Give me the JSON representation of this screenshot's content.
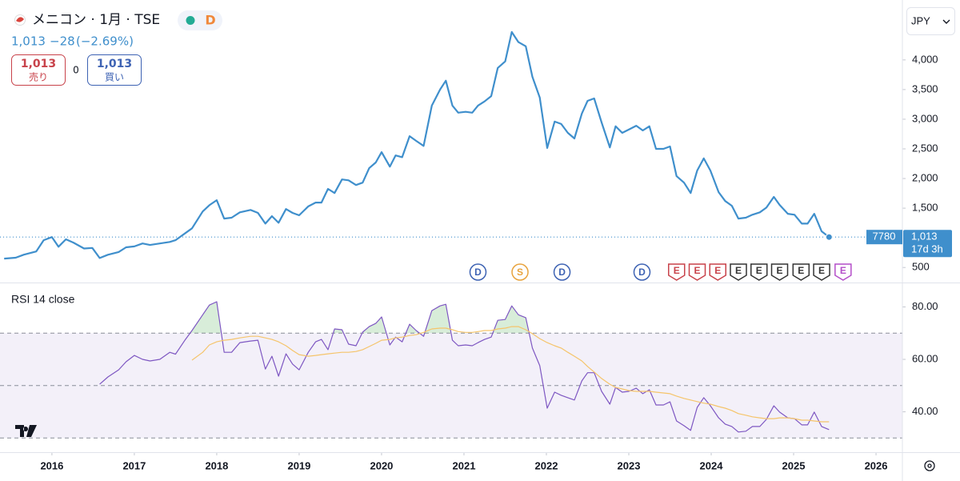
{
  "toolbar": {
    "badge": "D",
    "quote": "1,013",
    "change": "−28",
    "change_pct": "(−2.69%)",
    "sell_price": "1,013",
    "sell_label": "売り",
    "spread": "0",
    "buy_price": "1,013",
    "buy_label": "買い",
    "currency": "JPY",
    "ticker": "7780",
    "last_price": "1,013",
    "countdown": "17d 3h"
  },
  "chart_data": {
    "type": "line",
    "title": "メニコン · 1月 · TSE",
    "x": [
      2015.42,
      2015.56,
      2015.66,
      2015.81,
      2015.9,
      2016.0,
      2016.08,
      2016.17,
      2016.26,
      2016.39,
      2016.49,
      2016.58,
      2016.68,
      2016.81,
      2016.9,
      2017.0,
      2017.1,
      2017.19,
      2017.31,
      2017.43,
      2017.5,
      2017.62,
      2017.7,
      2017.83,
      2017.91,
      2018.0,
      2018.09,
      2018.18,
      2018.28,
      2018.41,
      2018.5,
      2018.59,
      2018.67,
      2018.75,
      2018.84,
      2018.92,
      2019.0,
      2019.11,
      2019.2,
      2019.27,
      2019.35,
      2019.43,
      2019.52,
      2019.6,
      2019.69,
      2019.77,
      2019.85,
      2019.93,
      2020.0,
      2020.1,
      2020.17,
      2020.25,
      2020.34,
      2020.42,
      2020.51,
      2020.61,
      2020.71,
      2020.78,
      2020.86,
      2020.93,
      2021.02,
      2021.1,
      2021.17,
      2021.25,
      2021.33,
      2021.41,
      2021.5,
      2021.58,
      2021.66,
      2021.75,
      2021.83,
      2021.92,
      2022.01,
      2022.1,
      2022.18,
      2022.26,
      2022.34,
      2022.43,
      2022.5,
      2022.58,
      2022.67,
      2022.77,
      2022.84,
      2022.92,
      2023.0,
      2023.09,
      2023.17,
      2023.25,
      2023.33,
      2023.42,
      2023.5,
      2023.58,
      2023.67,
      2023.75,
      2023.83,
      2023.91,
      2023.99,
      2024.09,
      2024.17,
      2024.25,
      2024.33,
      2024.42,
      2024.5,
      2024.59,
      2024.67,
      2024.76,
      2024.83,
      2024.93,
      2025.01,
      2025.1,
      2025.17,
      2025.25,
      2025.34,
      2025.43
    ],
    "xlim": [
      2015.37,
      2026.32
    ],
    "xticks": [
      2016,
      2017,
      2018,
      2019,
      2020,
      2021,
      2022,
      2023,
      2024,
      2025,
      2026
    ],
    "ylim": [
      260,
      5010
    ],
    "yticks": [
      500,
      {
        "value": 1500,
        "label": "1,500"
      },
      {
        "value": 2000,
        "label": "2,000"
      },
      {
        "value": 2500,
        "label": "2,500"
      },
      {
        "value": 3000,
        "label": "3,000"
      },
      {
        "value": 3500,
        "label": "3,500"
      },
      {
        "value": 4000,
        "label": "4,000"
      }
    ],
    "y2lim": [
      24.6,
      88.7
    ],
    "y2ticks": [
      {
        "value": 40,
        "label": "40.00"
      },
      {
        "value": 60,
        "label": "60.00"
      },
      {
        "value": 80,
        "label": "80.00"
      }
    ],
    "rsi_levels": [
      70,
      50,
      30
    ],
    "series": [
      {
        "color": "#3f8fcc",
        "values": [
          650,
          665,
          716,
          770,
          960,
          1013,
          850,
          975,
          920,
          820,
          830,
          660,
          715,
          760,
          840,
          855,
          905,
          880,
          905,
          930,
          960,
          1080,
          1160,
          1445,
          1550,
          1635,
          1325,
          1340,
          1430,
          1470,
          1420,
          1240,
          1365,
          1255,
          1485,
          1420,
          1380,
          1530,
          1595,
          1595,
          1825,
          1755,
          1985,
          1970,
          1890,
          1930,
          2175,
          2270,
          2445,
          2200,
          2390,
          2360,
          2715,
          2635,
          2550,
          3230,
          3500,
          3650,
          3230,
          3110,
          3125,
          3110,
          3230,
          3300,
          3390,
          3865,
          3975,
          4470,
          4300,
          4230,
          3715,
          3365,
          2515,
          2960,
          2920,
          2770,
          2675,
          3095,
          3310,
          3350,
          2945,
          2525,
          2880,
          2770,
          2825,
          2890,
          2810,
          2880,
          2500,
          2500,
          2540,
          2040,
          1930,
          1755,
          2135,
          2340,
          2135,
          1770,
          1620,
          1540,
          1325,
          1340,
          1390,
          1430,
          1510,
          1690,
          1555,
          1405,
          1390,
          1240,
          1240,
          1405,
          1110,
          1013
        ]
      },
      {
        "name": "RSI 14 close",
        "axis": "y2",
        "color": "#7e57c2",
        "values": [
          null,
          null,
          null,
          null,
          null,
          null,
          null,
          null,
          null,
          null,
          null,
          50.5,
          53.3,
          56,
          59.1,
          61.5,
          60,
          59.4,
          60,
          62.7,
          62,
          67.6,
          71,
          77,
          80.7,
          82,
          62.7,
          62.7,
          66.4,
          67,
          67.3,
          56.3,
          61.2,
          53.6,
          62.1,
          58.2,
          56,
          62.7,
          66.7,
          67.6,
          63.7,
          71.6,
          71.3,
          65.8,
          65.2,
          70.4,
          72.5,
          73.7,
          76.2,
          65.5,
          68.5,
          66.7,
          73.4,
          71,
          68.8,
          78.6,
          80.4,
          81,
          67.3,
          65.2,
          65.5,
          65.2,
          66.4,
          67.6,
          68.5,
          74.9,
          75.2,
          80.4,
          77,
          75.9,
          64.3,
          57.6,
          41.4,
          47.5,
          46.3,
          45.4,
          44.5,
          51.8,
          54.9,
          54.9,
          47.8,
          42.9,
          49.3,
          47.5,
          47.8,
          49,
          46.9,
          48.4,
          42.6,
          42.6,
          43.8,
          36.5,
          34.7,
          32.9,
          41.7,
          45.4,
          42.3,
          37.7,
          35.3,
          34.4,
          32.3,
          32.6,
          34.4,
          34.4,
          37.1,
          42.3,
          39.9,
          37.7,
          37.4,
          35,
          35,
          39.9,
          34.4,
          33.2
        ]
      },
      {
        "axis": "y2",
        "color": "#f5c46a",
        "values": [
          null,
          null,
          null,
          null,
          null,
          null,
          null,
          null,
          null,
          null,
          null,
          null,
          null,
          null,
          null,
          null,
          null,
          null,
          null,
          null,
          null,
          null,
          59.7,
          62.7,
          65.5,
          66.7,
          67.3,
          67.6,
          68.2,
          68.8,
          68.8,
          68.2,
          67.6,
          66.7,
          65.2,
          63.4,
          61.8,
          61.2,
          61.5,
          61.8,
          62.1,
          62.4,
          62.7,
          62.7,
          63,
          63.7,
          64.9,
          66.1,
          67.3,
          67.6,
          68.2,
          68.5,
          69.1,
          69.4,
          70.3,
          71.6,
          71.9,
          71.9,
          71.3,
          70.6,
          70.3,
          70.3,
          70.6,
          71,
          71,
          71.6,
          71.9,
          72.5,
          72.5,
          71.3,
          69.8,
          67.9,
          66.4,
          65.2,
          64.3,
          62.7,
          61.2,
          59.4,
          57.3,
          55.2,
          52.7,
          50.5,
          49.3,
          48.7,
          48.1,
          47.8,
          47.8,
          47.8,
          47.5,
          47.2,
          46.9,
          46,
          45.1,
          44.5,
          43.9,
          43.3,
          42.9,
          42,
          41.4,
          40.5,
          39.3,
          38.7,
          38.1,
          37.7,
          37.4,
          37.4,
          37.7,
          37.7,
          37.4,
          36.8,
          36.8,
          36.5,
          36.2,
          36.2
        ]
      }
    ],
    "events": [
      {
        "label": "D",
        "x": 2021.17,
        "color": "#3d62b3",
        "shape": "circle"
      },
      {
        "label": "S",
        "x": 2021.68,
        "color": "#e8a33d",
        "shape": "circle"
      },
      {
        "label": "D",
        "x": 2022.19,
        "color": "#3d62b3",
        "shape": "circle"
      },
      {
        "label": "D",
        "x": 2023.16,
        "color": "#3d62b3",
        "shape": "circle"
      },
      {
        "label": "E",
        "x": 2023.58,
        "color": "#c8424a",
        "shape": "flag"
      },
      {
        "label": "E",
        "x": 2023.83,
        "color": "#c8424a",
        "shape": "flag"
      },
      {
        "label": "E",
        "x": 2024.08,
        "color": "#c8424a",
        "shape": "flag"
      },
      {
        "label": "E",
        "x": 2024.33,
        "color": "#333333",
        "shape": "flag"
      },
      {
        "label": "E",
        "x": 2024.58,
        "color": "#333333",
        "shape": "flag"
      },
      {
        "label": "E",
        "x": 2024.83,
        "color": "#333333",
        "shape": "flag"
      },
      {
        "label": "E",
        "x": 2025.09,
        "color": "#333333",
        "shape": "flag"
      },
      {
        "label": "E",
        "x": 2025.34,
        "color": "#333333",
        "shape": "flag"
      },
      {
        "label": "E",
        "x": 2025.6,
        "color": "#b44fc9",
        "shape": "flag"
      }
    ]
  }
}
